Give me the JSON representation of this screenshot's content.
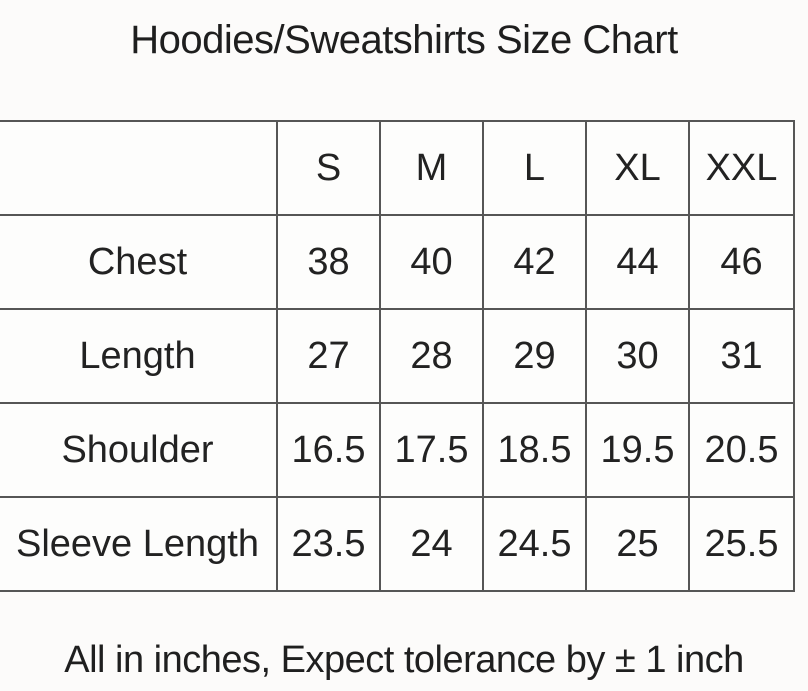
{
  "page": {
    "title": "Hoodies/Sweatshirts Size Chart",
    "footnote": "All in inches, Expect tolerance by ± 1 inch"
  },
  "chart_data": {
    "type": "table",
    "title": "Hoodies/Sweatshirts Size Chart",
    "unit": "inches",
    "tolerance": "± 1 inch",
    "columns": [
      "",
      "S",
      "M",
      "L",
      "XL",
      "XXL"
    ],
    "rows": [
      {
        "label": "Chest",
        "values": [
          "38",
          "40",
          "42",
          "44",
          "46"
        ]
      },
      {
        "label": "Length",
        "values": [
          "27",
          "28",
          "29",
          "30",
          "31"
        ]
      },
      {
        "label": "Shoulder",
        "values": [
          "16.5",
          "17.5",
          "18.5",
          "19.5",
          "20.5"
        ]
      },
      {
        "label": "Sleeve Length",
        "values": [
          "23.5",
          "24",
          "24.5",
          "25",
          "25.5"
        ]
      }
    ]
  }
}
